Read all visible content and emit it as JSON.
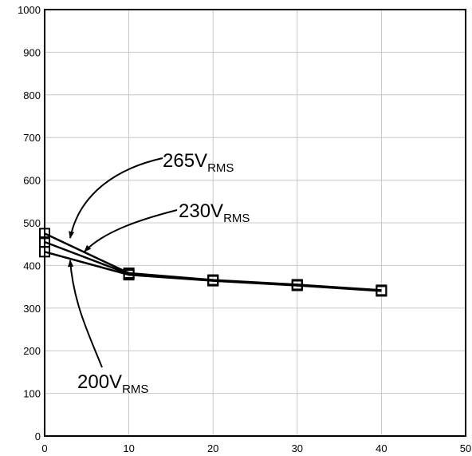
{
  "chart_data": {
    "type": "line",
    "title": "",
    "xlabel": "",
    "ylabel": "",
    "xlim": [
      0,
      50
    ],
    "ylim": [
      0,
      1000
    ],
    "x_ticks": [
      "0",
      "10",
      "20",
      "30",
      "40",
      "50"
    ],
    "y_ticks": [
      "0",
      "100",
      "200",
      "300",
      "400",
      "500",
      "600",
      "700",
      "800",
      "900",
      "1000"
    ],
    "grid": true,
    "marker": "square",
    "line_color": "#000000",
    "grid_color": "#c8c8c8",
    "series": [
      {
        "name": "265V_RMS",
        "x": [
          0,
          10,
          20,
          30,
          40
        ],
        "y": [
          475,
          382,
          366,
          355,
          342
        ]
      },
      {
        "name": "230V_RMS",
        "x": [
          0,
          10,
          20,
          30,
          40
        ],
        "y": [
          455,
          380,
          365,
          354,
          341
        ]
      },
      {
        "name": "200V_RMS",
        "x": [
          0,
          10,
          20,
          30,
          40
        ],
        "y": [
          432,
          378,
          364,
          353,
          340
        ]
      }
    ],
    "annotations": [
      {
        "main": "265V",
        "sub": "RMS"
      },
      {
        "main": "230V",
        "sub": "RMS"
      },
      {
        "main": "200V",
        "sub": "RMS"
      }
    ]
  }
}
